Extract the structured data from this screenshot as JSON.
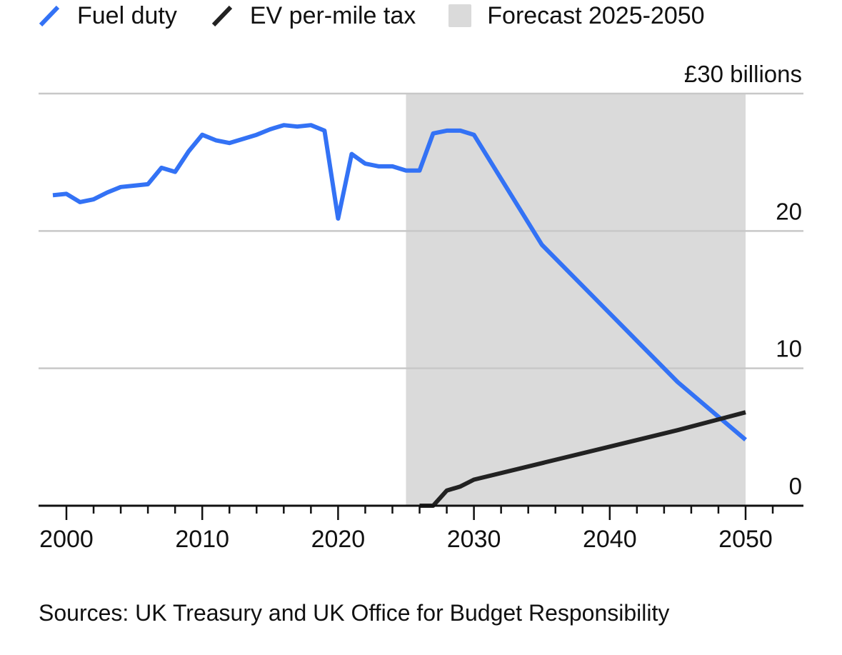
{
  "legend": [
    {
      "label": "Fuel duty",
      "color": "#3372F5",
      "kind": "line"
    },
    {
      "label": "EV per-mile tax",
      "color": "#222222",
      "kind": "line"
    },
    {
      "label": "Forecast 2025-2050",
      "color": "#DADADA",
      "kind": "box"
    }
  ],
  "source": "Sources: UK Treasury and UK Office for Budget Responsibility",
  "chart_data": {
    "type": "line",
    "title": "",
    "unit_label": "£30 billions",
    "xlim": [
      1998,
      2054
    ],
    "ylim": [
      0,
      30
    ],
    "x_ticks": [
      2000,
      2010,
      2020,
      2030,
      2040,
      2050
    ],
    "x_tick_labels": [
      "2000",
      "2010",
      "2020",
      "2030",
      "2040",
      "2050"
    ],
    "y_ticks": [
      0,
      10,
      20,
      30
    ],
    "y_tick_labels": [
      "0",
      "10",
      "20",
      "£30 billions"
    ],
    "forecast_region": {
      "label": "Forecast 2025-2050",
      "start": 2025,
      "end": 2050
    },
    "series": [
      {
        "name": "Fuel duty",
        "color": "#3372F5",
        "x": [
          1999,
          2000,
          2001,
          2002,
          2003,
          2004,
          2005,
          2006,
          2007,
          2008,
          2009,
          2010,
          2011,
          2012,
          2013,
          2014,
          2015,
          2016,
          2017,
          2018,
          2019,
          2020,
          2021,
          2022,
          2023,
          2024,
          2025,
          2026,
          2027,
          2028,
          2029,
          2030,
          2035,
          2040,
          2045,
          2050
        ],
        "values": [
          22.6,
          22.7,
          22.1,
          22.3,
          22.8,
          23.2,
          23.3,
          23.4,
          24.6,
          24.3,
          25.8,
          27.0,
          26.6,
          26.4,
          26.7,
          27.0,
          27.4,
          27.7,
          27.6,
          27.7,
          27.3,
          20.9,
          25.6,
          24.9,
          24.7,
          24.7,
          24.4,
          24.4,
          27.1,
          27.3,
          27.3,
          27.0,
          19.0,
          14.0,
          9.0,
          4.8
        ]
      },
      {
        "name": "EV per-mile tax",
        "color": "#222222",
        "x": [
          2026,
          2027,
          2028,
          2029,
          2030,
          2035,
          2040,
          2045,
          2050
        ],
        "values": [
          0.0,
          0.0,
          1.1,
          1.4,
          1.9,
          3.1,
          4.3,
          5.5,
          6.8
        ]
      }
    ]
  }
}
